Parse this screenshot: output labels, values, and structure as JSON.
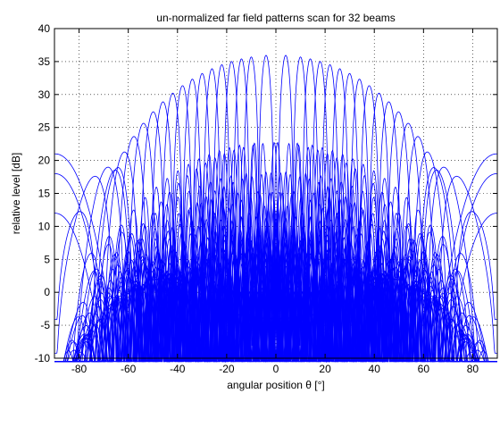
{
  "chart_data": {
    "type": "line",
    "title": "un-normalized far field patterns scan for 32 beams",
    "xlabel": "angular position θ [°]",
    "ylabel": "relative level [dB]",
    "xlim": [
      -90,
      90
    ],
    "ylim": [
      -10,
      40
    ],
    "xticks": [
      -80,
      -60,
      -40,
      -20,
      0,
      20,
      40,
      60,
      80
    ],
    "yticks": [
      -10,
      -5,
      0,
      5,
      10,
      15,
      20,
      25,
      30,
      35,
      40
    ],
    "grid": true,
    "grid_style": "dotted",
    "line_color": "#0000ff",
    "series_count": 32,
    "beam_peak_envelope_db": 36,
    "beam_peak_positions_deg": [
      -66,
      -62,
      -58,
      -54,
      -50,
      -46,
      -42,
      -38,
      -34,
      -30,
      -26,
      -22,
      -18,
      -14,
      -10,
      -4,
      4,
      10,
      14,
      18,
      22,
      26,
      30,
      34,
      38,
      42,
      46,
      50,
      54,
      58,
      62,
      66
    ],
    "grating_lobe_levels_db_at_edge": [
      21,
      18,
      12
    ]
  }
}
